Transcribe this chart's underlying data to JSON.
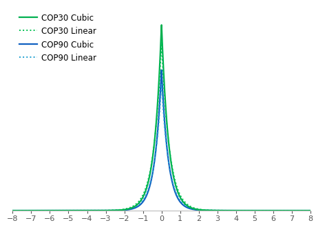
{
  "title": "",
  "xlabel": "",
  "ylabel": "",
  "xlim": [
    -8,
    8
  ],
  "ylim": [
    0,
    0.72
  ],
  "xticks": [
    -8,
    -7,
    -6,
    -5,
    -4,
    -3,
    -2,
    -1,
    0,
    1,
    2,
    3,
    4,
    5,
    6,
    7,
    8
  ],
  "legend": [
    {
      "label": "COP30 Cubic",
      "color": "#00b050",
      "linestyle": "solid",
      "linewidth": 1.6
    },
    {
      "label": "COP30 Linear",
      "color": "#00c050",
      "linestyle": "dotted",
      "linewidth": 1.4
    },
    {
      "label": "COP90 Cubic",
      "color": "#1060c0",
      "linestyle": "solid",
      "linewidth": 1.6
    },
    {
      "label": "COP90 Linear",
      "color": "#20a0d0",
      "linestyle": "dotted",
      "linewidth": 1.4
    }
  ],
  "cop30_cubic_peak": 0.66,
  "cop30_cubic_b": 0.38,
  "cop30_linear_peak": 0.6,
  "cop30_linear_b": 0.42,
  "cop90_cubic_peak": 0.5,
  "cop90_cubic_b": 0.36,
  "cop90_linear_peak": 0.45,
  "cop90_linear_b": 0.4,
  "background_color": "#ffffff",
  "tick_fontsize": 8,
  "legend_fontsize": 8.5
}
